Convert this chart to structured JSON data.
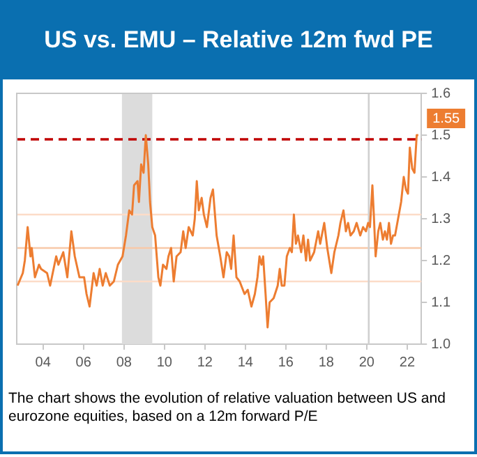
{
  "chart_data": {
    "type": "line",
    "title": "US vs. EMU – Relative 12m fwd PE",
    "annotations": [
      "The chart shows the evolution of relative valuation between US and eurozone equities, based on a 12m forward P/E",
      "1.55"
    ],
    "xlim": [
      2002.7,
      2022.7
    ],
    "xticks": [
      {
        "value": 2004,
        "label": "04"
      },
      {
        "value": 2006,
        "label": "06"
      },
      {
        "value": 2008,
        "label": "08"
      },
      {
        "value": 2010,
        "label": "10"
      },
      {
        "value": 2012,
        "label": "12"
      },
      {
        "value": 2014,
        "label": "14"
      },
      {
        "value": 2016,
        "label": "16"
      },
      {
        "value": 2018,
        "label": "18"
      },
      {
        "value": 2020,
        "label": "20"
      },
      {
        "value": 2022,
        "label": "22"
      }
    ],
    "ylim": [
      1.0,
      1.6
    ],
    "yticks": [
      {
        "value": 1.0,
        "label": "1.0"
      },
      {
        "value": 1.1,
        "label": "1.1"
      },
      {
        "value": 1.2,
        "label": "1.2"
      },
      {
        "value": 1.3,
        "label": "1.3"
      },
      {
        "value": 1.4,
        "label": "1.4"
      },
      {
        "value": 1.5,
        "label": "1.5"
      },
      {
        "value": 1.6,
        "label": "1.6"
      }
    ],
    "grid": false,
    "legend": false,
    "marker": "none",
    "line_style": "solid",
    "bands": [
      {
        "axis": "x",
        "from": 2007.9,
        "to": 2009.4,
        "color": "#dcdcdc"
      }
    ],
    "ref_lines": [
      {
        "axis": "y",
        "value": 1.31,
        "color": "#fcdcc8",
        "line_style": "solid"
      },
      {
        "axis": "y",
        "value": 1.23,
        "color": "#f8c8a8",
        "line_style": "solid"
      },
      {
        "axis": "y",
        "value": 1.15,
        "color": "#fcdcc8",
        "line_style": "solid"
      },
      {
        "axis": "x",
        "value": 2020.1,
        "color": "#d0d0d0",
        "line_style": "solid"
      },
      {
        "axis": "y",
        "value": 1.49,
        "color": "#c00000",
        "line_style": "dashed"
      }
    ],
    "series": [
      {
        "color": "#ed7d31",
        "x": [
          2002.74,
          2003.0,
          2003.1,
          2003.24,
          2003.38,
          2003.44,
          2003.6,
          2003.8,
          2003.9,
          2004.2,
          2004.35,
          2004.65,
          2004.76,
          2005.0,
          2005.2,
          2005.4,
          2005.57,
          2005.8,
          2006.03,
          2006.15,
          2006.3,
          2006.5,
          2006.65,
          2006.8,
          2006.95,
          2007.1,
          2007.3,
          2007.5,
          2007.7,
          2007.93,
          2008.1,
          2008.26,
          2008.4,
          2008.5,
          2008.67,
          2008.74,
          2008.85,
          2008.97,
          2009.08,
          2009.2,
          2009.29,
          2009.4,
          2009.54,
          2009.7,
          2009.8,
          2009.93,
          2010.1,
          2010.2,
          2010.33,
          2010.46,
          2010.6,
          2010.8,
          2010.93,
          2011.05,
          2011.2,
          2011.4,
          2011.5,
          2011.6,
          2011.7,
          2011.84,
          2011.95,
          2012.1,
          2012.28,
          2012.4,
          2012.58,
          2012.76,
          2012.92,
          2013.08,
          2013.2,
          2013.3,
          2013.42,
          2013.56,
          2013.72,
          2013.96,
          2014.12,
          2014.3,
          2014.47,
          2014.6,
          2014.7,
          2014.8,
          2014.88,
          2015.0,
          2015.1,
          2015.2,
          2015.4,
          2015.6,
          2015.7,
          2015.8,
          2015.93,
          2016.05,
          2016.2,
          2016.3,
          2016.4,
          2016.5,
          2016.6,
          2016.76,
          2016.87,
          2017.0,
          2017.1,
          2017.2,
          2017.4,
          2017.6,
          2017.7,
          2017.9,
          2018.05,
          2018.25,
          2018.4,
          2018.6,
          2018.7,
          2018.85,
          2018.97,
          2019.08,
          2019.2,
          2019.36,
          2019.5,
          2019.68,
          2019.82,
          2019.96,
          2020.07,
          2020.16,
          2020.28,
          2020.35,
          2020.44,
          2020.57,
          2020.67,
          2020.8,
          2020.9,
          2021.0,
          2021.1,
          2021.2,
          2021.3,
          2021.4,
          2021.55,
          2021.7,
          2021.83,
          2021.94,
          2022.04,
          2022.13,
          2022.25,
          2022.36,
          2022.47,
          2022.55
        ],
        "values": [
          1.14,
          1.17,
          1.2,
          1.28,
          1.21,
          1.23,
          1.16,
          1.19,
          1.18,
          1.17,
          1.14,
          1.21,
          1.19,
          1.22,
          1.16,
          1.27,
          1.21,
          1.16,
          1.16,
          1.12,
          1.09,
          1.17,
          1.14,
          1.18,
          1.14,
          1.17,
          1.14,
          1.15,
          1.19,
          1.21,
          1.26,
          1.32,
          1.31,
          1.38,
          1.39,
          1.34,
          1.43,
          1.41,
          1.5,
          1.43,
          1.34,
          1.28,
          1.26,
          1.16,
          1.14,
          1.19,
          1.18,
          1.21,
          1.23,
          1.15,
          1.21,
          1.22,
          1.27,
          1.23,
          1.28,
          1.26,
          1.3,
          1.39,
          1.32,
          1.35,
          1.31,
          1.28,
          1.35,
          1.37,
          1.26,
          1.21,
          1.16,
          1.22,
          1.21,
          1.18,
          1.26,
          1.16,
          1.15,
          1.12,
          1.13,
          1.09,
          1.12,
          1.16,
          1.21,
          1.19,
          1.21,
          1.12,
          1.04,
          1.1,
          1.11,
          1.14,
          1.18,
          1.14,
          1.14,
          1.21,
          1.23,
          1.22,
          1.31,
          1.24,
          1.26,
          1.22,
          1.26,
          1.2,
          1.25,
          1.2,
          1.22,
          1.27,
          1.24,
          1.29,
          1.23,
          1.17,
          1.22,
          1.26,
          1.29,
          1.32,
          1.27,
          1.29,
          1.26,
          1.27,
          1.29,
          1.26,
          1.28,
          1.27,
          1.29,
          1.28,
          1.38,
          1.31,
          1.21,
          1.27,
          1.29,
          1.25,
          1.27,
          1.25,
          1.29,
          1.24,
          1.26,
          1.26,
          1.3,
          1.34,
          1.4,
          1.37,
          1.36,
          1.47,
          1.42,
          1.41,
          1.5,
          1.5
        ]
      }
    ]
  }
}
